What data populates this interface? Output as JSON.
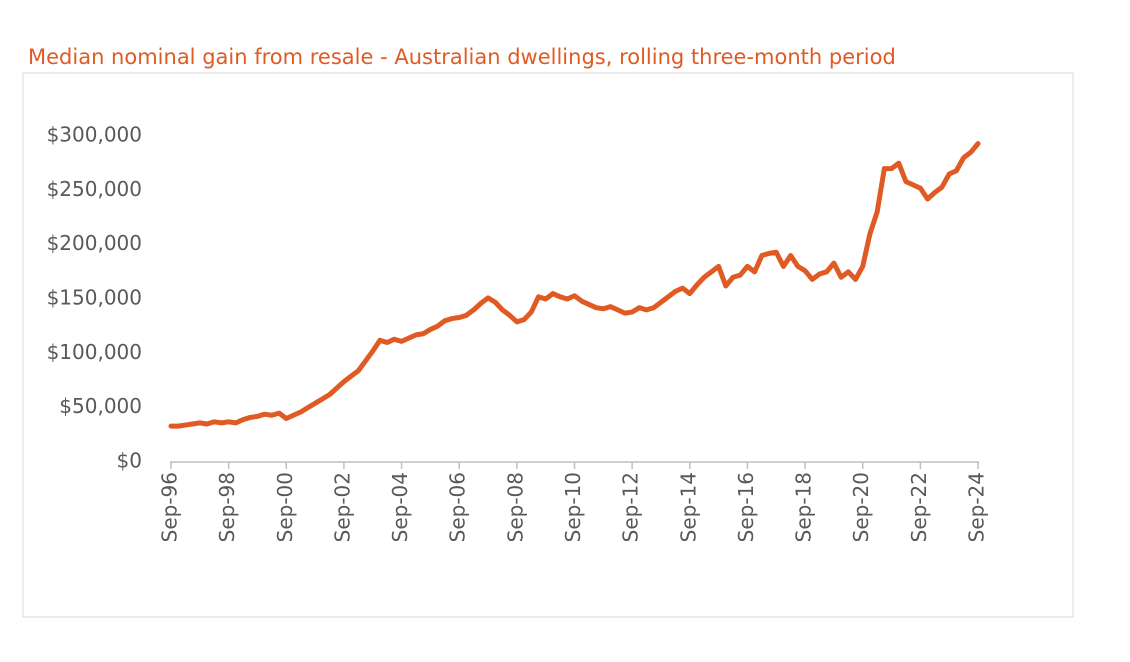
{
  "chart_data": {
    "type": "line",
    "title": "Median nominal gain from resale - Australian dwellings, rolling three-month period",
    "categories": [
      "Sep-96",
      null,
      null,
      null,
      null,
      null,
      null,
      null,
      "Sep-98",
      null,
      null,
      null,
      null,
      null,
      null,
      null,
      "Sep-00",
      null,
      null,
      null,
      null,
      null,
      null,
      null,
      "Sep-02",
      null,
      null,
      null,
      null,
      null,
      null,
      null,
      "Sep-04",
      null,
      null,
      null,
      null,
      null,
      null,
      null,
      "Sep-06",
      null,
      null,
      null,
      null,
      null,
      null,
      null,
      "Sep-08",
      null,
      null,
      null,
      null,
      null,
      null,
      null,
      "Sep-10",
      null,
      null,
      null,
      null,
      null,
      null,
      null,
      "Sep-12",
      null,
      null,
      null,
      null,
      null,
      null,
      null,
      "Sep-14",
      null,
      null,
      null,
      null,
      null,
      null,
      null,
      "Sep-16",
      null,
      null,
      null,
      null,
      null,
      null,
      null,
      "Sep-18",
      null,
      null,
      null,
      null,
      null,
      null,
      null,
      "Sep-20",
      null,
      null,
      null,
      null,
      null,
      null,
      null,
      "Sep-22",
      null,
      null,
      null,
      null,
      null,
      null,
      null,
      "Sep-24"
    ],
    "values": [
      33000,
      33000,
      34000,
      35000,
      36000,
      35000,
      37000,
      36000,
      37000,
      36000,
      39000,
      41000,
      42000,
      44000,
      43000,
      45000,
      40000,
      43000,
      46000,
      50000,
      54000,
      58000,
      62000,
      68000,
      74000,
      79000,
      84000,
      93000,
      102000,
      112000,
      110000,
      113000,
      111000,
      114000,
      117000,
      118000,
      122000,
      125000,
      130000,
      132000,
      133000,
      135000,
      140000,
      146000,
      151000,
      147000,
      140000,
      135000,
      129000,
      131000,
      138000,
      152000,
      150000,
      155000,
      152000,
      150000,
      153000,
      148000,
      145000,
      142000,
      141000,
      143000,
      140000,
      137000,
      138000,
      142000,
      140000,
      142000,
      147000,
      152000,
      157000,
      160000,
      155000,
      163000,
      170000,
      175000,
      180000,
      162000,
      170000,
      172000,
      180000,
      175000,
      190000,
      192000,
      193000,
      180000,
      190000,
      180000,
      176000,
      168000,
      173000,
      175000,
      183000,
      170000,
      175000,
      168000,
      180000,
      210000,
      230000,
      270000,
      270000,
      275000,
      258000,
      255000,
      252000,
      242000,
      248000,
      253000,
      265000,
      268000,
      280000,
      285000,
      293000
    ],
    "color": "#e05a24",
    "ylim": [
      0,
      300000
    ],
    "yticks": [
      {
        "value": 0,
        "label": "$0"
      },
      {
        "value": 50000,
        "label": "$50,000"
      },
      {
        "value": 100000,
        "label": "$100,000"
      },
      {
        "value": 150000,
        "label": "$150,000"
      },
      {
        "value": 200000,
        "label": "$200,000"
      },
      {
        "value": 250000,
        "label": "$250,000"
      },
      {
        "value": 300000,
        "label": "$300,000"
      }
    ],
    "grid": false
  }
}
